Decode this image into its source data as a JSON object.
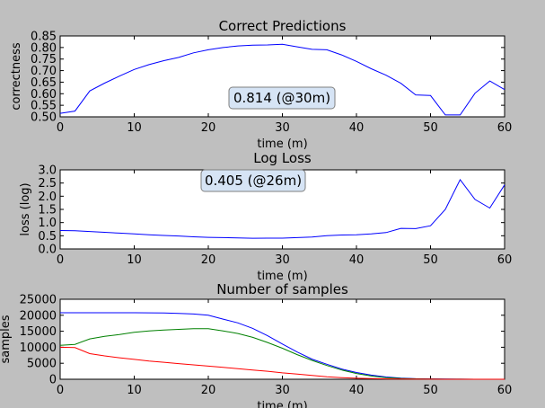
{
  "figure": {
    "background": "#bfbfbf"
  },
  "chart_data": [
    {
      "type": "line",
      "title": "Correct Predictions",
      "xlabel": "time (m)",
      "ylabel": "correctness",
      "xlim": [
        0,
        60
      ],
      "ylim": [
        0.5,
        0.85
      ],
      "xticks": [
        "0",
        "10",
        "20",
        "30",
        "40",
        "50",
        "60"
      ],
      "yticks": [
        "0.50",
        "0.55",
        "0.60",
        "0.65",
        "0.70",
        "0.75",
        "0.80",
        "0.85"
      ],
      "series": [
        {
          "color": "#0000ff",
          "x": [
            0,
            2,
            4,
            6,
            8,
            10,
            12,
            14,
            16,
            18,
            20,
            22,
            24,
            26,
            28,
            30,
            32,
            34,
            36,
            38,
            40,
            42,
            44,
            46,
            48,
            50,
            52,
            54,
            56,
            58,
            60
          ],
          "y": [
            0.515,
            0.525,
            0.612,
            0.646,
            0.676,
            0.705,
            0.726,
            0.743,
            0.757,
            0.777,
            0.79,
            0.8,
            0.807,
            0.81,
            0.811,
            0.814,
            0.803,
            0.792,
            0.79,
            0.768,
            0.74,
            0.708,
            0.68,
            0.645,
            0.595,
            0.592,
            0.508,
            0.508,
            0.602,
            0.655,
            0.618
          ]
        }
      ],
      "annotation": "0.814 (@30m)"
    },
    {
      "type": "line",
      "title": "Log Loss",
      "xlabel": "time (m)",
      "ylabel": "loss (log)",
      "xlim": [
        0,
        60
      ],
      "ylim": [
        0,
        3.0
      ],
      "xticks": [
        "0",
        "10",
        "20",
        "30",
        "40",
        "50",
        "60"
      ],
      "yticks": [
        "0.0",
        "0.5",
        "1.0",
        "1.5",
        "2.0",
        "2.5",
        "3.0"
      ],
      "series": [
        {
          "color": "#0000ff",
          "x": [
            0,
            2,
            4,
            6,
            8,
            10,
            12,
            14,
            16,
            18,
            20,
            22,
            24,
            26,
            28,
            30,
            32,
            34,
            36,
            38,
            40,
            42,
            44,
            46,
            48,
            50,
            52,
            54,
            56,
            58,
            60
          ],
          "y": [
            0.7,
            0.69,
            0.66,
            0.63,
            0.6,
            0.57,
            0.54,
            0.51,
            0.49,
            0.46,
            0.44,
            0.43,
            0.42,
            0.405,
            0.41,
            0.41,
            0.43,
            0.45,
            0.5,
            0.53,
            0.54,
            0.57,
            0.62,
            0.78,
            0.77,
            0.88,
            1.5,
            2.63,
            1.88,
            1.55,
            2.43
          ]
        }
      ],
      "annotation": "0.405 (@26m)"
    },
    {
      "type": "line",
      "title": "Number of samples",
      "xlabel": "time (m)",
      "ylabel": "samples",
      "xlim": [
        0,
        60
      ],
      "ylim": [
        0,
        25000
      ],
      "xticks": [
        "0",
        "10",
        "20",
        "30",
        "40",
        "50",
        "60"
      ],
      "yticks": [
        "0",
        "5000",
        "10000",
        "15000",
        "20000",
        "25000"
      ],
      "series": [
        {
          "color": "#0000ff",
          "x": [
            0,
            2,
            4,
            6,
            8,
            10,
            12,
            14,
            16,
            18,
            20,
            22,
            24,
            26,
            28,
            30,
            32,
            34,
            36,
            38,
            40,
            42,
            44,
            46,
            48,
            50,
            52,
            54,
            56,
            58,
            60
          ],
          "y": [
            20800,
            20800,
            20800,
            20800,
            20800,
            20800,
            20750,
            20700,
            20600,
            20400,
            20000,
            18800,
            17600,
            15900,
            13600,
            11000,
            8500,
            6300,
            4700,
            3200,
            2100,
            1300,
            700,
            350,
            180,
            100,
            60,
            30,
            10,
            5,
            0
          ]
        },
        {
          "color": "#008000",
          "x": [
            0,
            2,
            4,
            6,
            8,
            10,
            12,
            14,
            16,
            18,
            20,
            22,
            24,
            26,
            28,
            30,
            32,
            34,
            36,
            38,
            40,
            42,
            44,
            46,
            48,
            50,
            52,
            54,
            56,
            58,
            60
          ],
          "y": [
            10600,
            10900,
            12600,
            13400,
            14000,
            14700,
            15100,
            15400,
            15600,
            15800,
            15800,
            15100,
            14300,
            13100,
            11500,
            9700,
            7700,
            5900,
            4300,
            2900,
            1800,
            1000,
            500,
            250,
            120,
            60,
            30,
            15,
            5,
            2,
            0
          ]
        },
        {
          "color": "#ff0000",
          "x": [
            0,
            2,
            4,
            6,
            8,
            10,
            12,
            14,
            16,
            18,
            20,
            22,
            24,
            26,
            28,
            30,
            32,
            34,
            36,
            38,
            40,
            42,
            44,
            46,
            48,
            50,
            52,
            54,
            56,
            58,
            60
          ],
          "y": [
            10000,
            9900,
            8000,
            7300,
            6700,
            6200,
            5700,
            5300,
            4900,
            4500,
            4100,
            3700,
            3300,
            2900,
            2500,
            2000,
            1600,
            1200,
            800,
            500,
            300,
            200,
            120,
            80,
            40,
            20,
            10,
            5,
            2,
            1,
            0
          ]
        }
      ]
    }
  ]
}
